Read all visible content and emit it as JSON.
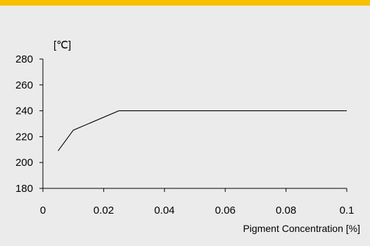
{
  "colors": {
    "background": "#ebebeb",
    "accent_bar": "#f7c100",
    "line": "#000000"
  },
  "chart_data": {
    "type": "line",
    "title": "",
    "ylabel": "[℃]",
    "xlabel": "Pigment Concentration [%]",
    "xlim": [
      0,
      0.1
    ],
    "ylim": [
      180,
      280
    ],
    "x_ticks": [
      "0",
      "0.02",
      "0.04",
      "0.06",
      "0.08",
      "0.1"
    ],
    "y_ticks": [
      "180",
      "200",
      "220",
      "240",
      "260",
      "280"
    ],
    "grid": false,
    "legend": "none",
    "series": [
      {
        "x": [
          0.005,
          0.01,
          0.025,
          0.1
        ],
        "values": [
          209,
          225,
          240,
          240
        ]
      }
    ]
  }
}
